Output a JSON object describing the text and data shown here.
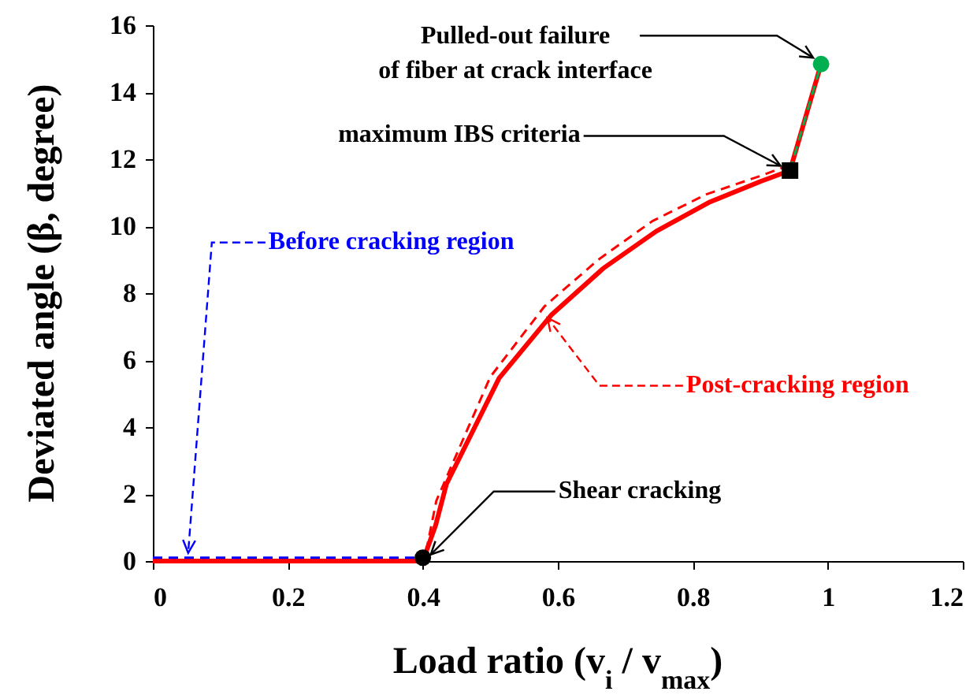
{
  "chart_data": {
    "type": "line",
    "xlabel": "Load ratio (v$_{i}$ / v$_{max}$)",
    "ylabel": "Deviated angle (β, degree)",
    "xlim": [
      0,
      1.2
    ],
    "xticks": [
      0,
      0.2,
      0.4,
      0.6,
      0.8,
      1,
      1.2
    ],
    "ylim": [
      0,
      16
    ],
    "yticks": [
      0,
      2,
      4,
      6,
      8,
      10,
      12,
      14,
      16
    ],
    "grid": false,
    "series": [
      {
        "type": "line",
        "color": "#ff0000",
        "line_style": "solid",
        "marker": "none",
        "x": [
          0,
          0.4,
          0.419,
          0.435,
          0.513,
          0.59,
          0.668,
          0.746,
          0.824,
          0.901,
          0.944,
          0.99
        ],
        "values": [
          0,
          0,
          1.07,
          2.3,
          5.46,
          7.34,
          8.75,
          9.85,
          10.71,
          11.34,
          11.66,
          14.84
        ]
      },
      {
        "type": "line",
        "color": "#ff0000",
        "line_style": "dashed",
        "marker": "none",
        "x": [
          0.405,
          0.42,
          0.5,
          0.58,
          0.66,
          0.74,
          0.82,
          0.9,
          0.94
        ],
        "values": [
          0.3,
          1.8,
          5.5,
          7.6,
          9.0,
          10.15,
          10.95,
          11.5,
          11.8
        ]
      },
      {
        "type": "line",
        "color": "#0000ff",
        "line_style": "dashed",
        "marker": "none",
        "x": [
          0,
          0.4
        ],
        "values": [
          0.1,
          0.1
        ]
      },
      {
        "type": "line",
        "color": "#00b050",
        "line_style": "dashed",
        "marker": "none",
        "x": [
          0.944,
          0.99
        ],
        "values": [
          11.66,
          14.84
        ]
      },
      {
        "type": "scatter",
        "color": "#000000",
        "marker": "circle",
        "x": [
          0.4
        ],
        "values": [
          0.1
        ]
      },
      {
        "type": "scatter",
        "color": "#000000",
        "marker": "square",
        "x": [
          0.944
        ],
        "values": [
          11.66
        ]
      },
      {
        "type": "scatter",
        "color": "#00b050",
        "marker": "circle",
        "x": [
          0.99
        ],
        "values": [
          14.84
        ]
      }
    ],
    "annotations": [
      {
        "text": "Before cracking region",
        "x": 0.05,
        "y": 0.1
      },
      {
        "text": "Shear cracking",
        "x": 0.4,
        "y": 0.1
      },
      {
        "text": "Post-cracking region",
        "x": 0.58,
        "y": 7.4
      },
      {
        "text": "maximum IBS criteria",
        "x": 0.944,
        "y": 11.66
      },
      {
        "text": "Pulled-out failure\nof fiber at crack interface",
        "x": 0.99,
        "y": 14.84
      }
    ]
  }
}
